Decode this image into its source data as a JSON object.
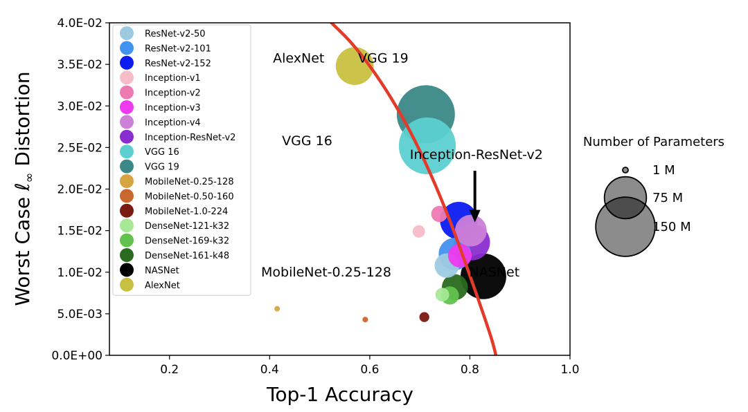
{
  "chart_data": {
    "type": "scatter",
    "xlabel": "Top-1 Accuracy",
    "ylabel_prefix": "Worst Case ",
    "ylabel_symbol": "ℓ",
    "ylabel_sub": "∞",
    "ylabel_suffix": " Distortion",
    "xlim": [
      0.08,
      1.0
    ],
    "ylim": [
      0.0,
      0.04
    ],
    "xticks": [
      0.2,
      0.4,
      0.6,
      0.8,
      1.0
    ],
    "xtick_labels": [
      "0.2",
      "0.4",
      "0.6",
      "0.8",
      "1.0"
    ],
    "yticks": [
      0.0,
      0.005,
      0.01,
      0.015,
      0.02,
      0.025,
      0.03,
      0.035,
      0.04
    ],
    "ytick_labels": [
      "0.0E+00",
      "5.0E-03",
      "1.0E-02",
      "1.5E-02",
      "2.0E-02",
      "2.5E-02",
      "3.0E-02",
      "3.5E-02",
      "4.0E-02"
    ],
    "series": [
      {
        "name": "ResNet-v2-50",
        "x": 0.754,
        "y": 0.0108,
        "params": 25.6,
        "color": "#9ecae1"
      },
      {
        "name": "ResNet-v2-101",
        "x": 0.77,
        "y": 0.0122,
        "params": 44.5,
        "color": "#4292f0"
      },
      {
        "name": "ResNet-v2-152",
        "x": 0.778,
        "y": 0.0162,
        "params": 60.2,
        "color": "#0c1cf0"
      },
      {
        "name": "Inception-v1",
        "x": 0.698,
        "y": 0.0149,
        "params": 6.6,
        "color": "#f6bcc8"
      },
      {
        "name": "Inception-v2",
        "x": 0.739,
        "y": 0.017,
        "params": 11.2,
        "color": "#ee7ab4"
      },
      {
        "name": "Inception-v3",
        "x": 0.78,
        "y": 0.012,
        "params": 23.8,
        "color": "#ee3aee"
      },
      {
        "name": "Inception-v4",
        "x": 0.802,
        "y": 0.015,
        "params": 42.7,
        "color": "#cc80d8"
      },
      {
        "name": "Inception-ResNet-v2",
        "x": 0.804,
        "y": 0.0136,
        "params": 55.8,
        "color": "#8a2dd0"
      },
      {
        "name": "VGG 16",
        "x": 0.715,
        "y": 0.0252,
        "params": 138,
        "color": "#5cd0d0"
      },
      {
        "name": "VGG 19",
        "x": 0.712,
        "y": 0.029,
        "params": 144,
        "color": "#3a8888"
      },
      {
        "name": "MobileNet-0.25-128",
        "x": 0.415,
        "y": 0.0056,
        "params": 0.47,
        "color": "#d8a440"
      },
      {
        "name": "MobileNet-0.50-160",
        "x": 0.591,
        "y": 0.0043,
        "params": 1.34,
        "color": "#c8682e"
      },
      {
        "name": "MobileNet-1.0-224",
        "x": 0.709,
        "y": 0.0046,
        "params": 4.2,
        "color": "#7a1a10"
      },
      {
        "name": "DenseNet-121-k32",
        "x": 0.745,
        "y": 0.0073,
        "params": 8.0,
        "color": "#a6e896"
      },
      {
        "name": "DenseNet-169-k32",
        "x": 0.76,
        "y": 0.0072,
        "params": 14.1,
        "color": "#62c24e"
      },
      {
        "name": "DenseNet-161-k48",
        "x": 0.77,
        "y": 0.0082,
        "params": 28.7,
        "color": "#2a6a1e"
      },
      {
        "name": "NASNet",
        "x": 0.827,
        "y": 0.0095,
        "params": 88.9,
        "color": "#000000"
      },
      {
        "name": "AlexNet",
        "x": 0.57,
        "y": 0.0348,
        "params": 61.1,
        "color": "#c8c040"
      }
    ],
    "trend_curve": {
      "color": "#e43a2a",
      "points": [
        [
          0.52,
          0.0402
        ],
        [
          0.56,
          0.0378
        ],
        [
          0.6,
          0.0348
        ],
        [
          0.64,
          0.0312
        ],
        [
          0.68,
          0.027
        ],
        [
          0.72,
          0.022
        ],
        [
          0.76,
          0.0162
        ],
        [
          0.8,
          0.0096
        ],
        [
          0.84,
          0.0026
        ],
        [
          0.852,
          0.0
        ]
      ]
    },
    "annotations": [
      {
        "text": "AlexNet",
        "x": 0.458,
        "y": 0.0352
      },
      {
        "text": "VGG 19",
        "x": 0.627,
        "y": 0.0352
      },
      {
        "text": "VGG 16",
        "x": 0.475,
        "y": 0.0253
      },
      {
        "text": "Inception-ResNet-v2",
        "x": 0.813,
        "y": 0.0236
      },
      {
        "text": "MobileNet-0.25-128",
        "x": 0.513,
        "y": 0.0095
      },
      {
        "text": "NASNet",
        "x": 0.849,
        "y": 0.0095
      }
    ],
    "arrow": {
      "x": 0.81,
      "y_start": 0.0222,
      "y_end": 0.016
    },
    "size_legend": {
      "title": "Number of Parameters",
      "entries": [
        {
          "label": "1 M",
          "params": 1
        },
        {
          "label": "75 M",
          "params": 75
        },
        {
          "label": "150 M",
          "params": 150
        }
      ]
    }
  }
}
